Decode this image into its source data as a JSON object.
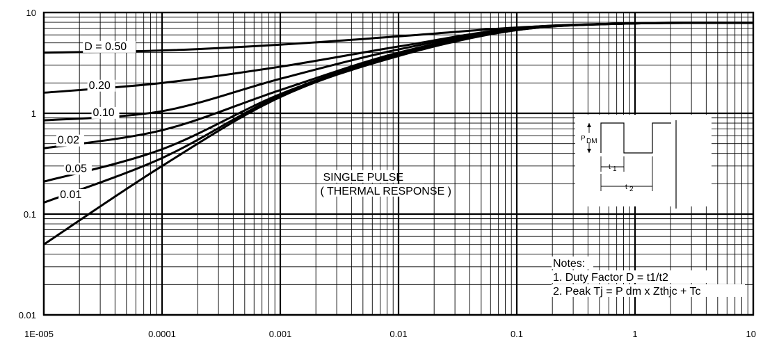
{
  "chart_data": {
    "type": "line",
    "title": "",
    "xlabel": "",
    "ylabel": "",
    "xscale": "log",
    "yscale": "log",
    "xlim": [
      1e-05,
      10
    ],
    "ylim": [
      0.01,
      10
    ],
    "grid": true,
    "x_ticks": [
      "1E-005",
      "0.0001",
      "0.001",
      "0.01",
      "0.1",
      "1",
      "10"
    ],
    "y_ticks": [
      "0.01",
      "0.1",
      "1",
      "10"
    ],
    "series": [
      {
        "name": "D = 0.50",
        "x": [
          1e-05,
          0.0001,
          0.001,
          0.01,
          0.1,
          1,
          10
        ],
        "y": [
          4.0,
          4.2,
          4.8,
          5.8,
          7.1,
          7.8,
          7.9
        ]
      },
      {
        "name": "0.20",
        "x": [
          1e-05,
          0.0001,
          0.001,
          0.01,
          0.1,
          1,
          10
        ],
        "y": [
          1.6,
          2.0,
          2.9,
          4.6,
          7.0,
          7.8,
          7.9
        ]
      },
      {
        "name": "0.10",
        "x": [
          1e-05,
          0.0001,
          0.001,
          0.01,
          0.1,
          1,
          10
        ],
        "y": [
          0.85,
          1.05,
          2.2,
          4.3,
          6.9,
          7.8,
          7.9
        ]
      },
      {
        "name": "0.02",
        "x": [
          1e-05,
          0.0001,
          0.001,
          0.01,
          0.1,
          1,
          10
        ],
        "y": [
          0.45,
          0.68,
          1.7,
          4.0,
          6.8,
          7.8,
          7.9
        ]
      },
      {
        "name": "0.05",
        "x": [
          1e-05,
          0.0001,
          0.001,
          0.01,
          0.1,
          1,
          10
        ],
        "y": [
          0.21,
          0.44,
          1.55,
          3.9,
          6.8,
          7.8,
          7.9
        ]
      },
      {
        "name": "0.01",
        "x": [
          1e-05,
          0.0001,
          0.001,
          0.01,
          0.1,
          1,
          10
        ],
        "y": [
          0.13,
          0.36,
          1.5,
          3.8,
          6.7,
          7.8,
          7.9
        ]
      },
      {
        "name": "SINGLE PULSE",
        "x": [
          1e-05,
          0.0001,
          0.001,
          0.01,
          0.1,
          1,
          10
        ],
        "y": [
          0.05,
          0.3,
          1.45,
          3.7,
          6.7,
          7.8,
          7.9
        ]
      }
    ],
    "curve_labels": [
      "D = 0.50",
      "0.20",
      "0.10",
      "0.02",
      "0.05",
      "0.01"
    ],
    "annotation": [
      "SINGLE PULSE",
      "( THERMAL RESPONSE )"
    ],
    "inset": {
      "pdm_label": "P",
      "pdm_sub": "DM",
      "t1_label": "t",
      "t1_sub": "1",
      "t2_label": "t",
      "t2_sub": "2"
    },
    "notes": [
      "Notes:",
      "1. Duty Factor D = t1/t2",
      "2. Peak Tj = P dm x Zthjc + Tc"
    ]
  }
}
